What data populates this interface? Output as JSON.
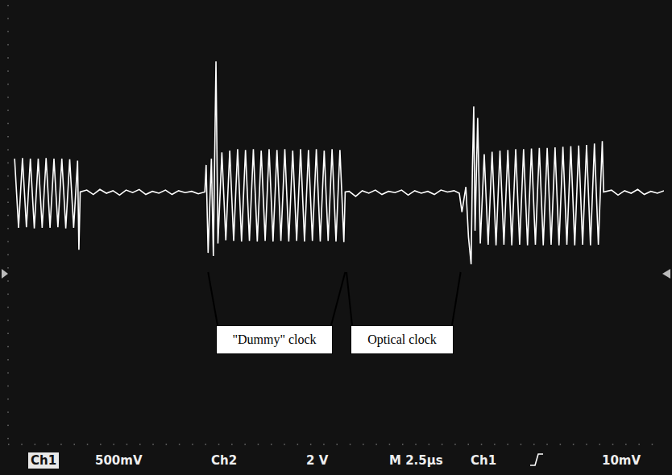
{
  "chart_data": {
    "type": "line",
    "color": "#ffffff",
    "grid": true,
    "tick_labels": false,
    "xlim": [
      0,
      10
    ],
    "xticks": [
      0,
      1,
      2,
      3,
      4,
      5,
      6,
      7,
      8,
      9,
      10
    ],
    "ylim": [
      -4,
      3
    ],
    "yticks": [
      -4,
      -3,
      -2,
      -1,
      0,
      1,
      2,
      3
    ],
    "x": [
      0.1,
      0.16,
      0.22,
      0.28,
      0.34,
      0.4,
      0.46,
      0.52,
      0.58,
      0.64,
      0.7,
      0.76,
      0.82,
      0.88,
      0.94,
      1.0,
      1.06,
      1.08,
      1.1,
      1.2,
      1.3,
      1.4,
      1.5,
      1.6,
      1.7,
      1.8,
      1.9,
      2.0,
      2.1,
      2.2,
      2.3,
      2.4,
      2.5,
      2.6,
      2.7,
      2.8,
      2.9,
      3.0,
      3.02,
      3.05,
      3.1,
      3.13,
      3.17,
      3.2,
      3.26,
      3.32,
      3.38,
      3.44,
      3.5,
      3.56,
      3.62,
      3.68,
      3.74,
      3.8,
      3.86,
      3.92,
      3.98,
      4.04,
      4.1,
      4.16,
      4.22,
      4.28,
      4.34,
      4.4,
      4.46,
      4.52,
      4.58,
      4.64,
      4.7,
      4.76,
      4.82,
      4.88,
      4.94,
      5.0,
      5.06,
      5.12,
      5.14,
      5.2,
      5.3,
      5.4,
      5.5,
      5.6,
      5.7,
      5.8,
      5.9,
      6.0,
      6.1,
      6.2,
      6.3,
      6.4,
      6.5,
      6.6,
      6.7,
      6.8,
      6.88,
      6.92,
      6.98,
      7.02,
      7.06,
      7.08,
      7.1,
      7.12,
      7.16,
      7.2,
      7.26,
      7.32,
      7.38,
      7.44,
      7.5,
      7.56,
      7.62,
      7.68,
      7.74,
      7.8,
      7.86,
      7.92,
      7.98,
      8.04,
      8.1,
      8.16,
      8.22,
      8.28,
      8.34,
      8.4,
      8.46,
      8.52,
      8.58,
      8.64,
      8.7,
      8.76,
      8.82,
      8.88,
      8.94,
      9.0,
      9.06,
      9.08,
      9.2,
      9.3,
      9.4,
      9.5,
      9.6,
      9.7,
      9.8,
      9.9,
      10
    ],
    "values": [
      0.55,
      -0.55,
      0.56,
      -0.54,
      0.55,
      -0.56,
      0.55,
      -0.55,
      0.56,
      -0.55,
      0.55,
      -0.54,
      0.55,
      -0.56,
      0.54,
      -0.55,
      0.52,
      -0.9,
      0.02,
      0.05,
      -0.02,
      0.06,
      0,
      0.04,
      -0.03,
      0.05,
      0.01,
      0.06,
      -0.02,
      0.03,
      0,
      0.05,
      -0.02,
      0.04,
      0.01,
      0.03,
      -0.01,
      0.02,
      0.45,
      -0.95,
      0.55,
      -1.0,
      2.1,
      -0.8,
      0.65,
      -0.75,
      0.68,
      -0.76,
      0.7,
      -0.77,
      0.69,
      -0.76,
      0.7,
      -0.77,
      0.68,
      -0.76,
      0.7,
      -0.77,
      0.69,
      -0.76,
      0.7,
      -0.77,
      0.68,
      -0.76,
      0.7,
      -0.77,
      0.69,
      -0.76,
      0.7,
      -0.77,
      0.68,
      -0.76,
      0.7,
      -0.77,
      0.69,
      -0.78,
      0.02,
      0.03,
      -0.05,
      0.04,
      0,
      0.05,
      -0.02,
      0.03,
      0.01,
      0.05,
      -0.03,
      0.04,
      0,
      0.03,
      -0.02,
      0.05,
      0.02,
      0.04,
      0,
      -0.3,
      0.1,
      -0.7,
      -1.13,
      0.4,
      1.38,
      -0.6,
      1.2,
      -0.8,
      0.62,
      -0.82,
      0.66,
      -0.83,
      0.68,
      -0.82,
      0.69,
      -0.83,
      0.7,
      -0.82,
      0.7,
      -0.83,
      0.71,
      -0.82,
      0.72,
      -0.83,
      0.72,
      -0.82,
      0.73,
      -0.83,
      0.74,
      -0.82,
      0.75,
      -0.83,
      0.76,
      -0.82,
      0.77,
      -0.83,
      0.79,
      -0.82,
      0.83,
      0.02,
      0.05,
      -0.03,
      0.04,
      0,
      0.06,
      -0.02,
      0.03,
      0,
      0.04
    ],
    "annotations": [
      {
        "text": "\"Dummy\" clock",
        "x": [
          3.05,
          5.14
        ]
      },
      {
        "text": "Optical clock",
        "x": [
          5.16,
          6.9
        ]
      }
    ],
    "status_bar": [
      "Ch1",
      "500mV",
      "Ch2",
      "2 V",
      "M 2.5µs",
      "Ch1",
      "10mV"
    ]
  }
}
